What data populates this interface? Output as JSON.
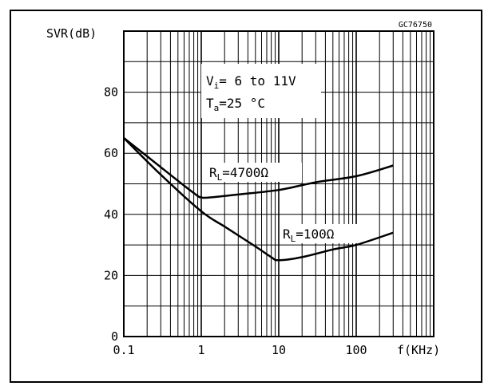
{
  "chart_data": {
    "type": "line",
    "code": "GC76750",
    "ylabel": "SVR(dB)",
    "xlabel": "f(KHz)",
    "x_scale": "log",
    "xlim": [
      0.1,
      500
    ],
    "ylim": [
      0,
      100
    ],
    "x_ticks": [
      "0.1",
      "1",
      "10",
      "100"
    ],
    "y_ticks": [
      "0",
      "20",
      "40",
      "60",
      "80"
    ],
    "grid": true,
    "conditions": {
      "vi_sym": "V",
      "vi_sub": "i",
      "vi_text": "= 6 to 11V",
      "ta_sym": "T",
      "ta_sub": "a",
      "ta_text": "=25 °C"
    },
    "series": [
      {
        "name": "RL=4700Ω",
        "label_sym": "R",
        "label_sub": "L",
        "label_text": "=4700Ω",
        "points": [
          [
            0.1,
            65
          ],
          [
            0.2,
            59
          ],
          [
            0.5,
            51
          ],
          [
            0.8,
            47
          ],
          [
            1.0,
            45.5
          ],
          [
            1.5,
            45.7
          ],
          [
            3,
            46.5
          ],
          [
            10,
            48
          ],
          [
            30,
            50.5
          ],
          [
            100,
            52.5
          ],
          [
            300,
            56
          ]
        ]
      },
      {
        "name": "RL=100Ω",
        "label_sym": "R",
        "label_sub": "L",
        "label_text": "=100Ω",
        "points": [
          [
            0.1,
            65
          ],
          [
            0.3,
            53
          ],
          [
            1,
            41
          ],
          [
            2,
            36
          ],
          [
            5,
            29.5
          ],
          [
            8,
            26
          ],
          [
            10,
            25
          ],
          [
            20,
            26
          ],
          [
            50,
            28.5
          ],
          [
            100,
            30
          ],
          [
            300,
            34
          ]
        ]
      }
    ]
  }
}
